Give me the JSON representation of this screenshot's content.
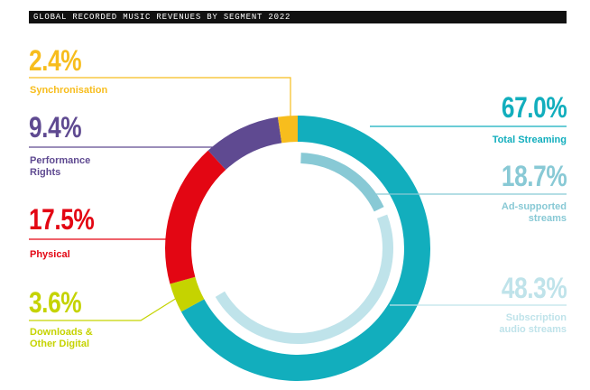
{
  "chart_data": {
    "type": "pie",
    "title": "GLOBAL RECORDED MUSIC REVENUES BY SEGMENT 2022",
    "segments": [
      {
        "name": "Total Streaming",
        "value": 67.0,
        "label": "67.0%",
        "color": "#12aebd"
      },
      {
        "name": "Downloads & Other Digital",
        "value": 3.6,
        "label": "3.6%",
        "color": "#c5d300"
      },
      {
        "name": "Physical",
        "value": 17.5,
        "label": "17.5%",
        "color": "#e30613"
      },
      {
        "name": "Performance Rights",
        "value": 9.4,
        "label": "9.4%",
        "color": "#5f4a91"
      },
      {
        "name": "Synchronisation",
        "value": 2.4,
        "label": "2.4%",
        "color": "#f7bd1d"
      }
    ],
    "sub_segments": [
      {
        "name": "Ad-supported streams",
        "value": 18.7,
        "label": "18.7%",
        "color": "#88c9d5"
      },
      {
        "name": "Subscription audio streams",
        "value": 48.3,
        "label": "48.3%",
        "color": "#bfe3ea"
      }
    ]
  },
  "labels": {
    "sync_pct": "2.4%",
    "sync_name": "Synchronisation",
    "perf_pct": "9.4%",
    "perf_name": "Performance\nRights",
    "phys_pct": "17.5%",
    "phys_name": "Physical",
    "dl_pct": "3.6%",
    "dl_name": "Downloads &\nOther Digital",
    "stream_pct": "67.0%",
    "stream_name": "Total Streaming",
    "ad_pct": "18.7%",
    "ad_name": "Ad-supported\nstreams",
    "sub_pct": "48.3%",
    "sub_name": "Subscription\naudio streams"
  }
}
